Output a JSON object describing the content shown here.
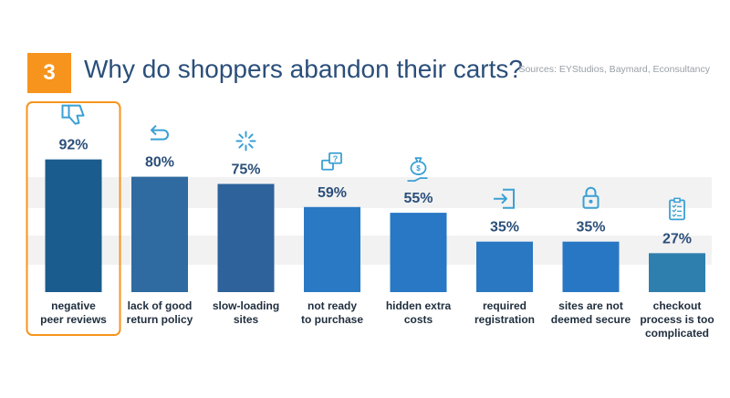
{
  "header": {
    "badge": "3",
    "title": "Why do shoppers abandon their carts?",
    "sources": "Sources: EYStudios, Baymard, Econsultancy"
  },
  "colors": {
    "badge": "#f7941d",
    "title": "#2b4f7a",
    "highlight_border": "#f7941d",
    "band": "#f2f2f2",
    "icon": "#3aa0d4"
  },
  "chart_data": {
    "type": "bar",
    "title": "Why do shoppers abandon their carts?",
    "xlabel": "",
    "ylabel": "",
    "ylim": [
      0,
      100
    ],
    "grid": false,
    "highlighted_index": 0,
    "categories": [
      "negative peer reviews",
      "lack of good return policy",
      "slow-loading sites",
      "not ready to purchase",
      "hidden extra costs",
      "required registration",
      "sites are not deemed secure",
      "checkout process is too complicated"
    ],
    "category_lines": [
      [
        "negative",
        "peer reviews"
      ],
      [
        "lack of good",
        "return policy"
      ],
      [
        "slow-loading",
        "sites"
      ],
      [
        "not ready",
        "to purchase"
      ],
      [
        "hidden extra",
        "costs"
      ],
      [
        "required",
        "registration"
      ],
      [
        "sites are not",
        "deemed secure"
      ],
      [
        "checkout",
        "process is too",
        "complicated"
      ]
    ],
    "values": [
      92,
      80,
      75,
      59,
      55,
      35,
      35,
      27
    ],
    "value_labels": [
      "92%",
      "80%",
      "75%",
      "59%",
      "55%",
      "35%",
      "35%",
      "27%"
    ],
    "bar_colors": [
      "#1b5c8e",
      "#2f6aa0",
      "#2e629a",
      "#2a79c4",
      "#2878c5",
      "#2a78c1",
      "#2877c4",
      "#2e7fae"
    ],
    "icons": [
      "thumbs-down-icon",
      "return-arrow-icon",
      "loading-spinner-icon",
      "question-chat-icon",
      "money-bag-hand-icon",
      "register-enter-icon",
      "padlock-icon",
      "checklist-icon"
    ]
  }
}
